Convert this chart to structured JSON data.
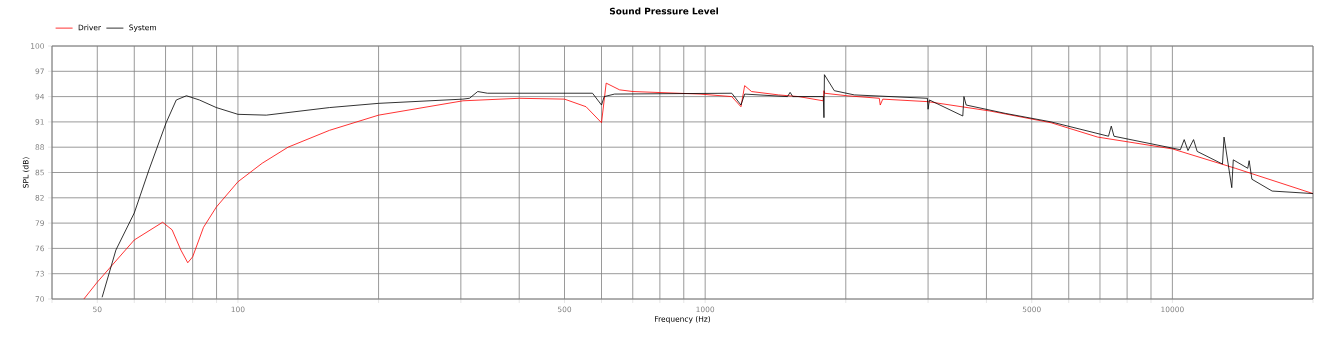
{
  "chart_data": {
    "type": "line",
    "title": "Sound Pressure Level",
    "xlabel": "Frequency (Hz)",
    "ylabel": "SPL (dB)",
    "log": "x",
    "grid": true,
    "legend": "top left",
    "marker": "none",
    "line_style": "solid",
    "xlim": [
      40,
      20000
    ],
    "ylim": [
      70,
      100
    ],
    "xticks": [
      {
        "value": 40,
        "label": null
      },
      50,
      {
        "value": 60,
        "label": null
      },
      {
        "value": 70,
        "label": null
      },
      {
        "value": 80,
        "label": null
      },
      {
        "value": 90,
        "label": null
      },
      100,
      {
        "value": 200,
        "label": null
      },
      {
        "value": 300,
        "label": null
      },
      {
        "value": 400,
        "label": null
      },
      500,
      {
        "value": 600,
        "label": null
      },
      {
        "value": 700,
        "label": null
      },
      {
        "value": 800,
        "label": null
      },
      {
        "value": 900,
        "label": null
      },
      1000,
      {
        "value": 2000,
        "label": null
      },
      {
        "value": 3000,
        "label": null
      },
      {
        "value": 4000,
        "label": null
      },
      5000,
      {
        "value": 6000,
        "label": null
      },
      {
        "value": 7000,
        "label": null
      },
      {
        "value": 8000,
        "label": null
      },
      {
        "value": 9000,
        "label": null
      },
      10000,
      {
        "value": 20000,
        "label": null
      }
    ],
    "yticks": [
      70,
      73,
      76,
      79,
      82,
      85,
      88,
      91,
      94,
      97,
      100
    ],
    "series": [
      {
        "name": "Driver",
        "color": "#ff0000",
        "x": [
          46.8,
          50,
          60,
          69,
          72.3,
          75.5,
          78.1,
          80,
          84.4,
          89.9,
          100,
          112.7,
          128,
          157,
          200,
          303,
          400,
          500,
          556,
          600,
          614,
          656,
          701,
          975,
          1140,
          1193,
          1215,
          1257,
          1436,
          1586,
          1790,
          1796,
          1800,
          2012,
          2359,
          2370,
          2400,
          3000,
          4062,
          5500,
          6920,
          10000,
          13640,
          20000
        ],
        "values": [
          70,
          72.0,
          77.0,
          79.1,
          78.2,
          75.8,
          74.3,
          75.0,
          78.5,
          80.9,
          83.9,
          86.1,
          88.0,
          90.0,
          91.8,
          93.5,
          93.8,
          93.7,
          92.8,
          90.9,
          95.6,
          94.8,
          94.6,
          94.3,
          94.0,
          92.8,
          95.3,
          94.6,
          94.2,
          94.0,
          93.5,
          94.7,
          94.4,
          94.1,
          93.8,
          93.0,
          93.7,
          93.4,
          92.3,
          90.9,
          89.2,
          87.8,
          85.5,
          82.5
        ]
      },
      {
        "name": "System",
        "color": "#000000",
        "x": [
          51.2,
          54.8,
          60,
          64.5,
          70.2,
          73.8,
          77.6,
          82.7,
          89.9,
          100,
          115,
          157,
          200,
          303,
          313,
          326,
          342,
          574,
          600,
          608,
          640,
          1140,
          1193,
          1215,
          1500,
          1520,
          1540,
          1790,
          1796,
          1800,
          1890,
          2086,
          2990,
          3000,
          3020,
          3560,
          3580,
          3620,
          4400,
          5500,
          7300,
          7400,
          7500,
          10400,
          10600,
          10800,
          11100,
          11300,
          12800,
          12900,
          13400,
          13500,
          14500,
          14600,
          14800,
          16350,
          20000
        ],
        "values": [
          70.2,
          75.8,
          80.2,
          85.3,
          90.9,
          93.6,
          94.1,
          93.6,
          92.7,
          91.9,
          91.8,
          92.7,
          93.2,
          93.7,
          93.8,
          94.6,
          94.4,
          94.4,
          93.0,
          94.0,
          94.3,
          94.4,
          93.0,
          94.3,
          94.0,
          94.5,
          94.0,
          94.0,
          91.5,
          96.6,
          94.7,
          94.2,
          93.8,
          92.5,
          93.6,
          91.7,
          94.0,
          93.0,
          92.0,
          91.0,
          89.3,
          90.5,
          89.3,
          87.7,
          88.9,
          87.6,
          88.9,
          87.5,
          86.0,
          89.2,
          83.2,
          86.5,
          85.5,
          86.4,
          84.2,
          82.8,
          82.5
        ]
      }
    ]
  }
}
